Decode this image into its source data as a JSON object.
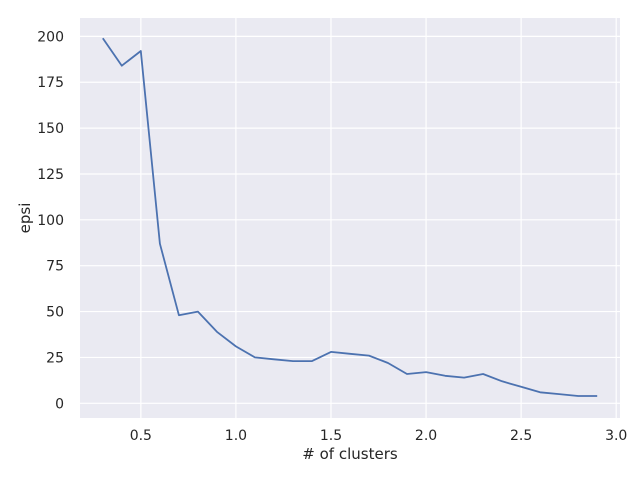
{
  "chart_data": {
    "type": "line",
    "title": "",
    "xlabel": "# of clusters",
    "ylabel": "epsi",
    "xlim": [
      0.18,
      3.02
    ],
    "ylim": [
      -8,
      210
    ],
    "xticks": [
      0.5,
      1.0,
      1.5,
      2.0,
      2.5,
      3.0
    ],
    "xtick_labels": [
      "0.5",
      "1.0",
      "1.5",
      "2.0",
      "2.5",
      "3.0"
    ],
    "yticks": [
      0,
      25,
      50,
      75,
      100,
      125,
      150,
      175,
      200
    ],
    "ytick_labels": [
      "0",
      "25",
      "50",
      "75",
      "100",
      "125",
      "150",
      "175",
      "200"
    ],
    "grid": true,
    "colors": {
      "background": "#eaeaf2",
      "grid": "#ffffff",
      "line": "#4c72b0",
      "text": "#262626"
    },
    "series": [
      {
        "x": [
          0.3,
          0.4,
          0.5,
          0.6,
          0.7,
          0.8,
          0.9,
          1.0,
          1.1,
          1.2,
          1.3,
          1.4,
          1.5,
          1.6,
          1.7,
          1.8,
          1.9,
          2.0,
          2.1,
          2.2,
          2.3,
          2.4,
          2.5,
          2.6,
          2.7,
          2.8,
          2.9
        ],
        "values": [
          199,
          184,
          192,
          87,
          48,
          50,
          39,
          31,
          25,
          24,
          23,
          23,
          28,
          27,
          26,
          22,
          16,
          17,
          15,
          14,
          16,
          12,
          9,
          6,
          5,
          4,
          4
        ]
      }
    ]
  }
}
